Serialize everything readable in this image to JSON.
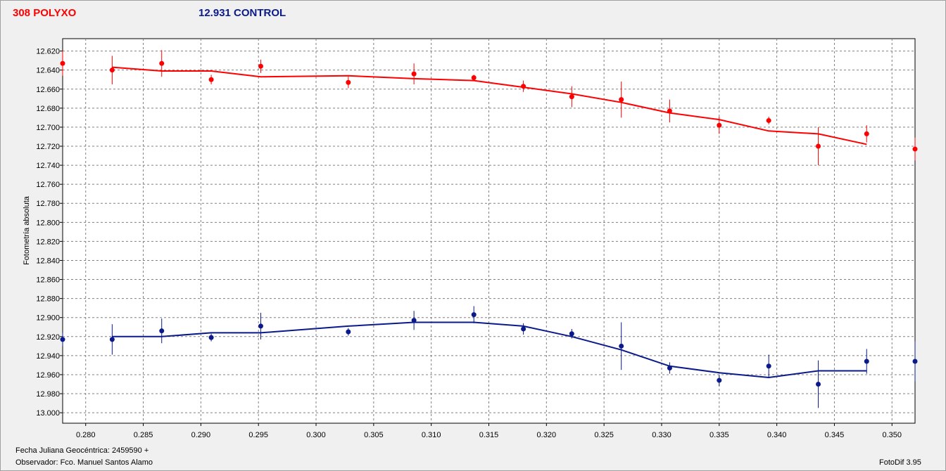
{
  "header": {
    "target_title": "308 POLYXO",
    "control_title": "12.931 CONTROL"
  },
  "footer": {
    "julian_date": "Fecha Juliana Geocéntrica: 2459590 +",
    "observer": "Observador: Fco. Manuel Santos Alamo",
    "software": "FotoDif 3.95"
  },
  "chart_data": {
    "type": "scatter",
    "ylabel": "Fotometría absoluta",
    "xlabel": "",
    "xlim": [
      0.278,
      0.352
    ],
    "ylim": [
      12.607,
      13.011
    ],
    "y_inverted": true,
    "grid": true,
    "x_ticks": [
      "0.280",
      "0.285",
      "0.290",
      "0.295",
      "0.300",
      "0.305",
      "0.310",
      "0.315",
      "0.320",
      "0.325",
      "0.330",
      "0.335",
      "0.340",
      "0.345",
      "0.350"
    ],
    "y_ticks": [
      "12.620",
      "12.640",
      "12.660",
      "12.680",
      "12.700",
      "12.720",
      "12.740",
      "12.760",
      "12.780",
      "12.800",
      "12.820",
      "12.840",
      "12.860",
      "12.880",
      "12.900",
      "12.920",
      "12.940",
      "12.960",
      "12.980",
      "13.000"
    ],
    "series": [
      {
        "color": "#ff0000",
        "points": [
          {
            "x": 0.278,
            "y": 12.633,
            "err": 0.013
          },
          {
            "x": 0.2823,
            "y": 12.64,
            "err": 0.015
          },
          {
            "x": 0.2866,
            "y": 12.633,
            "err": 0.014
          },
          {
            "x": 0.2909,
            "y": 12.65,
            "err": 0.005
          },
          {
            "x": 0.2952,
            "y": 12.636,
            "err": 0.007
          },
          {
            "x": 0.3028,
            "y": 12.653,
            "err": 0.006
          },
          {
            "x": 0.3085,
            "y": 12.644,
            "err": 0.011
          },
          {
            "x": 0.3137,
            "y": 12.648,
            "err": 0.003
          },
          {
            "x": 0.318,
            "y": 12.657,
            "err": 0.006
          },
          {
            "x": 0.3222,
            "y": 12.668,
            "err": 0.011
          },
          {
            "x": 0.3265,
            "y": 12.671,
            "err": 0.019
          },
          {
            "x": 0.3307,
            "y": 12.683,
            "err": 0.012
          },
          {
            "x": 0.335,
            "y": 12.698,
            "err": 0.009
          },
          {
            "x": 0.3393,
            "y": 12.693,
            "err": 0.004
          },
          {
            "x": 0.3436,
            "y": 12.72,
            "err": 0.02
          },
          {
            "x": 0.3478,
            "y": 12.707,
            "err": 0.009
          },
          {
            "x": 0.352,
            "y": 12.723,
            "err": 0.012
          }
        ],
        "fit": [
          {
            "x": 0.2823,
            "y": 12.637
          },
          {
            "x": 0.2866,
            "y": 12.641
          },
          {
            "x": 0.2909,
            "y": 12.641
          },
          {
            "x": 0.2952,
            "y": 12.647
          },
          {
            "x": 0.3028,
            "y": 12.646
          },
          {
            "x": 0.3085,
            "y": 12.649
          },
          {
            "x": 0.3137,
            "y": 12.651
          },
          {
            "x": 0.318,
            "y": 12.658
          },
          {
            "x": 0.3222,
            "y": 12.665
          },
          {
            "x": 0.3265,
            "y": 12.674
          },
          {
            "x": 0.3307,
            "y": 12.685
          },
          {
            "x": 0.335,
            "y": 12.692
          },
          {
            "x": 0.3393,
            "y": 12.704
          },
          {
            "x": 0.3436,
            "y": 12.707
          },
          {
            "x": 0.3478,
            "y": 12.718
          }
        ]
      },
      {
        "color": "#0a1a8a",
        "points": [
          {
            "x": 0.278,
            "y": 12.923,
            "err": 0.007
          },
          {
            "x": 0.2823,
            "y": 12.923,
            "err": 0.016
          },
          {
            "x": 0.2866,
            "y": 12.914,
            "err": 0.013
          },
          {
            "x": 0.2909,
            "y": 12.921,
            "err": 0.004
          },
          {
            "x": 0.2952,
            "y": 12.909,
            "err": 0.014
          },
          {
            "x": 0.3028,
            "y": 12.915,
            "err": 0.004
          },
          {
            "x": 0.3085,
            "y": 12.903,
            "err": 0.01
          },
          {
            "x": 0.3137,
            "y": 12.897,
            "err": 0.009
          },
          {
            "x": 0.318,
            "y": 12.912,
            "err": 0.006
          },
          {
            "x": 0.3222,
            "y": 12.917,
            "err": 0.005
          },
          {
            "x": 0.3265,
            "y": 12.93,
            "err": 0.025
          },
          {
            "x": 0.3307,
            "y": 12.953,
            "err": 0.006
          },
          {
            "x": 0.335,
            "y": 12.966,
            "err": 0.006
          },
          {
            "x": 0.3393,
            "y": 12.951,
            "err": 0.012
          },
          {
            "x": 0.3436,
            "y": 12.97,
            "err": 0.025
          },
          {
            "x": 0.3478,
            "y": 12.946,
            "err": 0.013
          },
          {
            "x": 0.352,
            "y": 12.946,
            "err": 0.021
          }
        ],
        "fit": [
          {
            "x": 0.2823,
            "y": 12.92
          },
          {
            "x": 0.2866,
            "y": 12.92
          },
          {
            "x": 0.2909,
            "y": 12.916
          },
          {
            "x": 0.2952,
            "y": 12.916
          },
          {
            "x": 0.3028,
            "y": 12.909
          },
          {
            "x": 0.3085,
            "y": 12.905
          },
          {
            "x": 0.3137,
            "y": 12.905
          },
          {
            "x": 0.318,
            "y": 12.909
          },
          {
            "x": 0.3222,
            "y": 12.92
          },
          {
            "x": 0.3265,
            "y": 12.934
          },
          {
            "x": 0.3307,
            "y": 12.951
          },
          {
            "x": 0.335,
            "y": 12.958
          },
          {
            "x": 0.3393,
            "y": 12.963
          },
          {
            "x": 0.3436,
            "y": 12.956
          },
          {
            "x": 0.3478,
            "y": 12.956
          }
        ]
      }
    ]
  }
}
